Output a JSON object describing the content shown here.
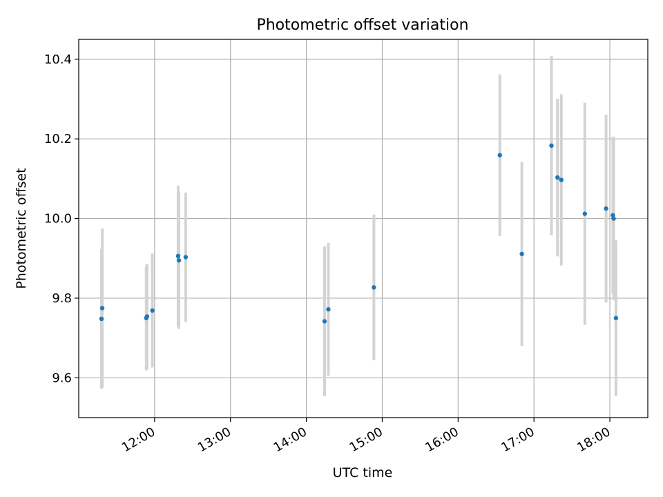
{
  "chart_data": {
    "type": "scatter",
    "title": "Photometric offset variation",
    "xlabel": "UTC time",
    "ylabel": "Photometric offset",
    "x_unit": "hours (UTC)",
    "xlim": [
      11.0,
      18.5
    ],
    "ylim": [
      9.5,
      10.45
    ],
    "x_ticks": [
      {
        "value": 12.0,
        "label": "12:00"
      },
      {
        "value": 13.0,
        "label": "13:00"
      },
      {
        "value": 14.0,
        "label": "14:00"
      },
      {
        "value": 15.0,
        "label": "15:00"
      },
      {
        "value": 16.0,
        "label": "16:00"
      },
      {
        "value": 17.0,
        "label": "17:00"
      },
      {
        "value": 18.0,
        "label": "18:00"
      }
    ],
    "y_ticks": [
      {
        "value": 9.6,
        "label": "9.6"
      },
      {
        "value": 9.8,
        "label": "9.8"
      },
      {
        "value": 10.0,
        "label": "10.0"
      },
      {
        "value": 10.2,
        "label": "10.2"
      },
      {
        "value": 10.4,
        "label": "10.4"
      }
    ],
    "grid": true,
    "legend": "none",
    "point_color": "#1f77b4",
    "errorbar_color": "#d3d3d3",
    "points": [
      {
        "x": 11.31,
        "y": 9.775,
        "err": 0.2
      },
      {
        "x": 11.3,
        "y": 9.748,
        "err": 0.175
      },
      {
        "x": 11.9,
        "y": 9.754,
        "err": 0.132
      },
      {
        "x": 11.89,
        "y": 9.75,
        "err": 0.131
      },
      {
        "x": 11.97,
        "y": 9.769,
        "err": 0.143
      },
      {
        "x": 12.31,
        "y": 9.906,
        "err": 0.177
      },
      {
        "x": 12.32,
        "y": 9.895,
        "err": 0.172
      },
      {
        "x": 12.41,
        "y": 9.903,
        "err": 0.162
      },
      {
        "x": 14.24,
        "y": 9.742,
        "err": 0.188
      },
      {
        "x": 14.29,
        "y": 9.772,
        "err": 0.167
      },
      {
        "x": 14.89,
        "y": 9.827,
        "err": 0.183
      },
      {
        "x": 16.55,
        "y": 10.159,
        "err": 0.203
      },
      {
        "x": 16.84,
        "y": 9.911,
        "err": 0.231
      },
      {
        "x": 17.23,
        "y": 10.183,
        "err": 0.225
      },
      {
        "x": 17.31,
        "y": 10.103,
        "err": 0.198
      },
      {
        "x": 17.36,
        "y": 10.097,
        "err": 0.215
      },
      {
        "x": 17.67,
        "y": 10.012,
        "err": 0.279
      },
      {
        "x": 17.95,
        "y": 10.025,
        "err": 0.236
      },
      {
        "x": 18.04,
        "y": 10.008,
        "err": 0.197
      },
      {
        "x": 18.05,
        "y": 10.0,
        "err": 0.205
      },
      {
        "x": 18.08,
        "y": 9.75,
        "err": 0.195
      }
    ]
  }
}
